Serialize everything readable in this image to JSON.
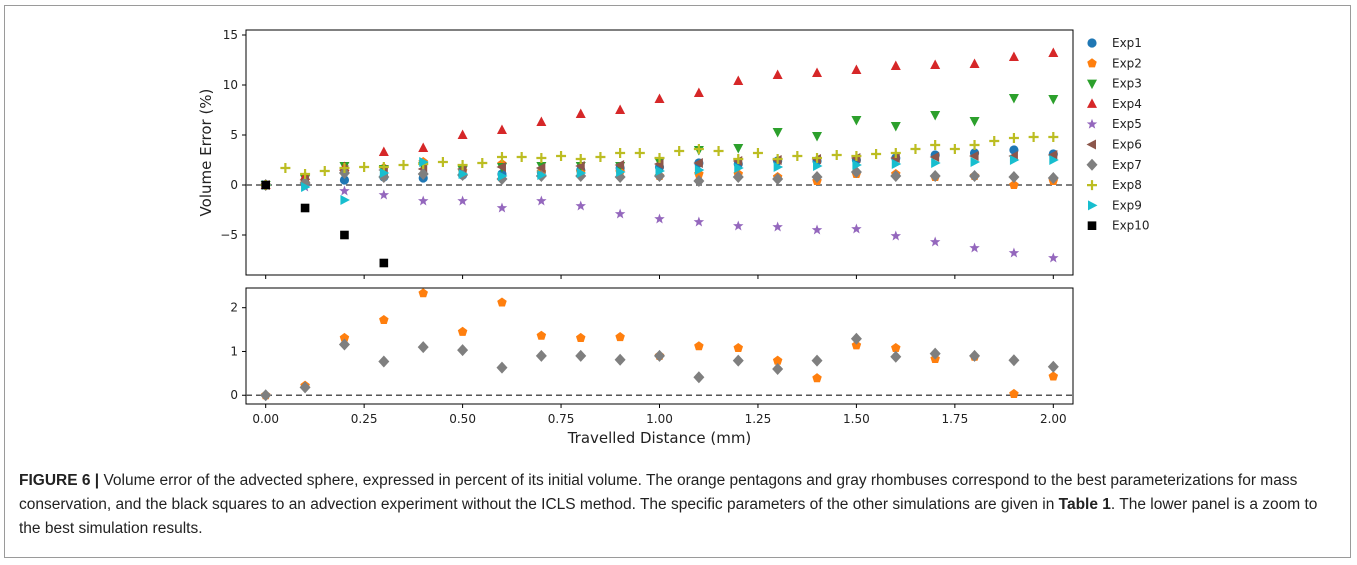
{
  "chart_data": [
    {
      "type": "scatter",
      "panel": "upper",
      "xlabel": "",
      "ylabel": "Volume Error (%)",
      "xlim": [
        -0.05,
        2.05
      ],
      "ylim": [
        -9,
        15.5
      ],
      "yticks": [
        -5,
        0,
        5,
        10,
        15
      ],
      "ytick_labels": [
        "−5",
        "0",
        "5",
        "10",
        "15"
      ],
      "reference_line_y": 0,
      "grid": false,
      "legend": "right, outside",
      "series": [
        {
          "name": "Exp1",
          "color": "#1f77b4",
          "marker": "circle",
          "x": [
            0,
            0.1,
            0.2,
            0.3,
            0.4,
            0.5,
            0.6,
            0.7,
            0.8,
            0.9,
            1.0,
            1.1,
            1.2,
            1.3,
            1.4,
            1.5,
            1.6,
            1.7,
            1.8,
            1.9,
            2.0
          ],
          "y": [
            0,
            0.2,
            0.5,
            0.8,
            0.7,
            1.0,
            1.1,
            1.3,
            1.5,
            1.7,
            1.8,
            2.2,
            2.1,
            2.4,
            2.4,
            2.5,
            2.7,
            3.0,
            3.2,
            3.5,
            3.1
          ]
        },
        {
          "name": "Exp2",
          "color": "#ff7f0e",
          "marker": "pentagon",
          "x": [
            0,
            0.1,
            0.2,
            0.3,
            0.4,
            0.5,
            0.6,
            0.7,
            0.8,
            0.9,
            1.0,
            1.1,
            1.2,
            1.3,
            1.4,
            1.5,
            1.6,
            1.7,
            1.8,
            1.9,
            2.0
          ],
          "y": [
            0,
            0.2,
            1.3,
            1.7,
            2.3,
            1.4,
            2.1,
            1.3,
            1.3,
            1.3,
            0.9,
            1.1,
            1.1,
            0.8,
            0.4,
            1.1,
            1.1,
            0.8,
            0.9,
            0.0,
            0.4
          ]
        },
        {
          "name": "Exp3",
          "color": "#2ca02c",
          "marker": "triangle-down",
          "x": [
            0,
            0.1,
            0.2,
            0.3,
            0.4,
            0.5,
            0.6,
            0.7,
            0.8,
            0.9,
            1.0,
            1.1,
            1.2,
            1.3,
            1.4,
            1.5,
            1.6,
            1.7,
            1.8,
            1.9,
            2.0
          ],
          "y": [
            0,
            0.6,
            1.9,
            1.6,
            1.9,
            1.5,
            1.8,
            1.9,
            1.9,
            1.9,
            2.3,
            3.5,
            3.7,
            5.3,
            4.9,
            6.5,
            5.9,
            7.0,
            6.4,
            8.7,
            8.6
          ]
        },
        {
          "name": "Exp4",
          "color": "#d62728",
          "marker": "triangle-up",
          "x": [
            0,
            0.1,
            0.2,
            0.3,
            0.4,
            0.5,
            0.6,
            0.7,
            0.8,
            0.9,
            1.0,
            1.1,
            1.2,
            1.3,
            1.4,
            1.5,
            1.6,
            1.7,
            1.8,
            1.9,
            2.0
          ],
          "y": [
            0,
            0.9,
            1.8,
            3.3,
            3.7,
            5.0,
            5.5,
            6.3,
            7.1,
            7.5,
            8.6,
            9.2,
            10.4,
            11.0,
            11.2,
            11.5,
            11.9,
            12.0,
            12.1,
            12.8,
            13.2
          ]
        },
        {
          "name": "Exp5",
          "color": "#9467bd",
          "marker": "star",
          "x": [
            0,
            0.1,
            0.2,
            0.3,
            0.4,
            0.5,
            0.6,
            0.7,
            0.8,
            0.9,
            1.0,
            1.1,
            1.2,
            1.3,
            1.4,
            1.5,
            1.6,
            1.7,
            1.8,
            1.9,
            2.0
          ],
          "y": [
            0,
            -0.2,
            -0.6,
            -1.0,
            -1.6,
            -1.6,
            -2.3,
            -1.6,
            -2.1,
            -2.9,
            -3.4,
            -3.7,
            -4.1,
            -4.2,
            -4.5,
            -4.4,
            -5.1,
            -5.7,
            -6.3,
            -6.8,
            -7.3
          ]
        },
        {
          "name": "Exp6",
          "color": "#8c564b",
          "marker": "triangle-left",
          "x": [
            0,
            0.1,
            0.2,
            0.3,
            0.4,
            0.5,
            0.6,
            0.7,
            0.8,
            0.9,
            1.0,
            1.1,
            1.2,
            1.3,
            1.4,
            1.5,
            1.6,
            1.7,
            1.8,
            1.9,
            2.0
          ],
          "y": [
            0,
            0.5,
            1.5,
            1.5,
            1.6,
            1.6,
            1.8,
            1.7,
            1.9,
            2.0,
            2.1,
            2.2,
            2.4,
            2.5,
            2.6,
            2.7,
            2.7,
            2.8,
            2.9,
            2.9,
            3.0
          ]
        },
        {
          "name": "Exp7",
          "color": "#7f7f7f",
          "marker": "diamond",
          "x": [
            0,
            0.1,
            0.2,
            0.3,
            0.4,
            0.5,
            0.6,
            0.7,
            0.8,
            0.9,
            1.0,
            1.1,
            1.2,
            1.3,
            1.4,
            1.5,
            1.6,
            1.7,
            1.8,
            1.9,
            2.0
          ],
          "y": [
            0,
            0.2,
            1.2,
            0.8,
            1.1,
            1.0,
            0.6,
            0.9,
            0.9,
            0.8,
            0.9,
            0.4,
            0.8,
            0.6,
            0.8,
            1.3,
            0.9,
            0.9,
            0.9,
            0.8,
            0.7
          ]
        },
        {
          "name": "Exp8",
          "color": "#bcbd22",
          "marker": "plus",
          "x": [
            0,
            0.05,
            0.1,
            0.15,
            0.2,
            0.25,
            0.3,
            0.35,
            0.4,
            0.45,
            0.5,
            0.55,
            0.6,
            0.65,
            0.7,
            0.75,
            0.8,
            0.85,
            0.9,
            0.95,
            1.0,
            1.05,
            1.1,
            1.15,
            1.2,
            1.25,
            1.3,
            1.35,
            1.4,
            1.45,
            1.5,
            1.55,
            1.6,
            1.65,
            1.7,
            1.75,
            1.8,
            1.85,
            1.9,
            1.95,
            2.0
          ],
          "y": [
            0,
            1.7,
            1.1,
            1.4,
            1.7,
            1.8,
            1.8,
            2.0,
            2.1,
            2.3,
            2.0,
            2.2,
            2.8,
            2.8,
            2.7,
            2.9,
            2.6,
            2.8,
            3.2,
            3.2,
            2.7,
            3.4,
            3.6,
            3.4,
            2.6,
            3.2,
            2.6,
            2.9,
            2.7,
            3.0,
            2.9,
            3.1,
            3.2,
            3.6,
            4.0,
            3.6,
            4.0,
            4.4,
            4.7,
            4.8,
            4.8
          ]
        },
        {
          "name": "Exp9",
          "color": "#17becf",
          "marker": "triangle-right",
          "x": [
            0,
            0.1,
            0.2,
            0.3,
            0.4,
            0.5,
            0.6,
            0.7,
            0.8,
            0.9,
            1.0,
            1.1,
            1.2,
            1.3,
            1.4,
            1.5,
            1.6,
            1.7,
            1.8,
            1.9,
            2.0
          ],
          "y": [
            0,
            -0.2,
            -1.5,
            1.2,
            2.3,
            1.1,
            0.9,
            1.0,
            1.2,
            1.3,
            1.4,
            1.5,
            1.7,
            1.8,
            1.9,
            2.0,
            2.1,
            2.2,
            2.3,
            2.5,
            2.5
          ]
        },
        {
          "name": "Exp10",
          "color": "#000000",
          "marker": "square",
          "x": [
            0,
            0.1,
            0.2,
            0.3
          ],
          "y": [
            0,
            -2.3,
            -5.0,
            -7.8
          ]
        }
      ]
    },
    {
      "type": "scatter",
      "panel": "lower",
      "xlabel": "Travelled Distance (mm)",
      "ylabel": "",
      "xlim": [
        -0.05,
        2.05
      ],
      "ylim": [
        -0.2,
        2.45
      ],
      "xticks": [
        0,
        0.25,
        0.5,
        0.75,
        1.0,
        1.25,
        1.5,
        1.75,
        2.0
      ],
      "xtick_labels": [
        "0.00",
        "0.25",
        "0.50",
        "0.75",
        "1.00",
        "1.25",
        "1.50",
        "1.75",
        "2.00"
      ],
      "yticks": [
        0,
        1,
        2
      ],
      "ytick_labels": [
        "0",
        "1",
        "2"
      ],
      "reference_line_y": 0,
      "grid": false,
      "series": [
        {
          "name": "Exp2",
          "color": "#ff7f0e",
          "marker": "pentagon",
          "x": [
            0,
            0.1,
            0.2,
            0.3,
            0.4,
            0.5,
            0.6,
            0.7,
            0.8,
            0.9,
            1.0,
            1.1,
            1.2,
            1.3,
            1.4,
            1.5,
            1.6,
            1.7,
            1.8,
            1.9,
            2.0
          ],
          "y": [
            0,
            0.22,
            1.31,
            1.72,
            2.33,
            1.45,
            2.12,
            1.36,
            1.31,
            1.33,
            0.9,
            1.12,
            1.08,
            0.79,
            0.39,
            1.14,
            1.08,
            0.83,
            0.88,
            0.03,
            0.43
          ]
        },
        {
          "name": "Exp7",
          "color": "#7f7f7f",
          "marker": "diamond",
          "x": [
            0,
            0.1,
            0.2,
            0.3,
            0.4,
            0.5,
            0.6,
            0.7,
            0.8,
            0.9,
            1.0,
            1.1,
            1.2,
            1.3,
            1.4,
            1.5,
            1.6,
            1.7,
            1.8,
            1.9,
            2.0
          ],
          "y": [
            0,
            0.18,
            1.16,
            0.77,
            1.1,
            1.03,
            0.63,
            0.9,
            0.9,
            0.81,
            0.9,
            0.41,
            0.79,
            0.6,
            0.79,
            1.29,
            0.88,
            0.95,
            0.9,
            0.8,
            0.65
          ]
        }
      ]
    }
  ],
  "caption": {
    "label": "FIGURE 6 |",
    "text_1": " Volume error of the advected sphere, expressed in percent of its initial volume. The orange pentagons and gray rhombuses correspond to the best parameterizations for mass conservation, and the black squares to an advection experiment without the ICLS method. The specific parameters of the other simulations are given in ",
    "table_ref": "Table 1",
    "text_2": ". The lower panel is a zoom to the best simulation results."
  }
}
